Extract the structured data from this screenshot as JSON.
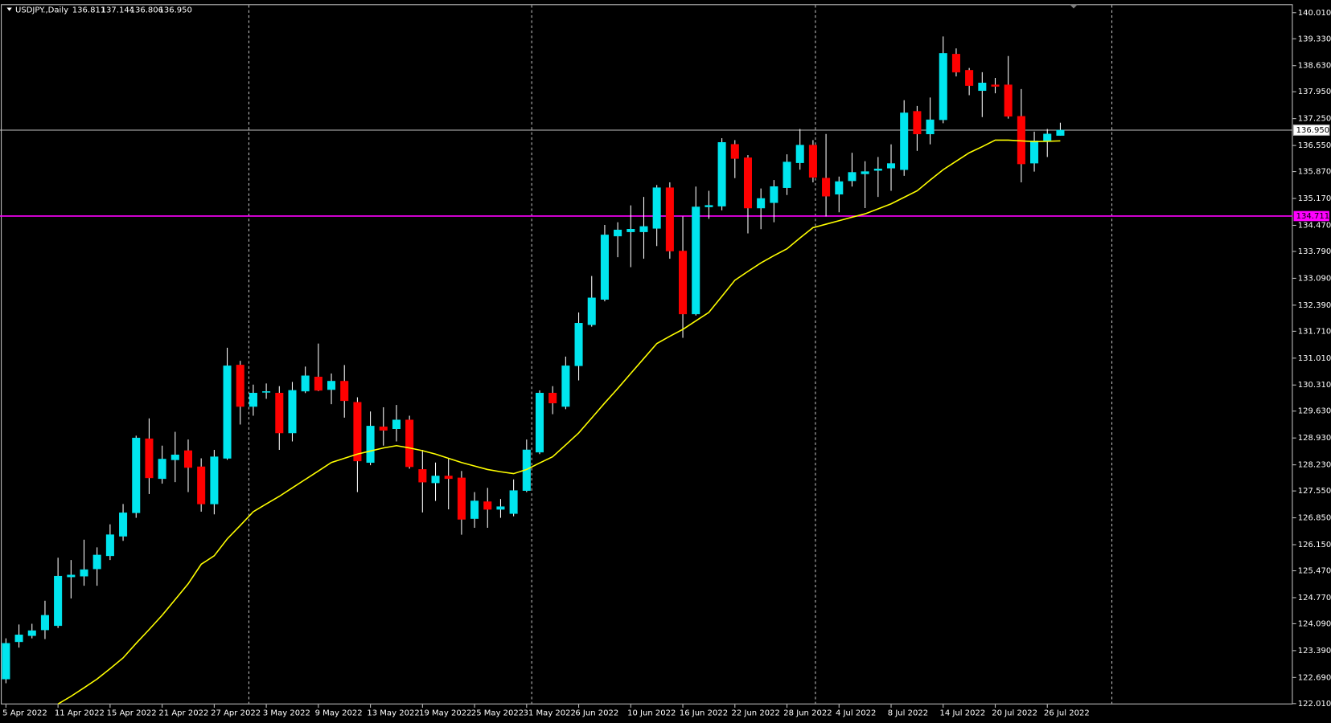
{
  "chart_data": {
    "type": "candlestick",
    "title": "USDJPY.,Daily",
    "categories": [
      "5 Apr 2022",
      null,
      null,
      null,
      "11 Apr 2022",
      null,
      null,
      null,
      "15 Apr 2022",
      null,
      null,
      null,
      "21 Apr 2022",
      null,
      null,
      null,
      "27 Apr 2022",
      null,
      null,
      null,
      "3 May 2022",
      null,
      null,
      null,
      "9 May 2022",
      null,
      null,
      null,
      "13 May 2022",
      null,
      null,
      null,
      "19 May 2022",
      null,
      null,
      null,
      "25 May 2022",
      null,
      null,
      null,
      "31 May 2022",
      null,
      null,
      null,
      "6 Jun 2022",
      null,
      null,
      null,
      "10 Jun 2022",
      null,
      null,
      null,
      "16 Jun 2022",
      null,
      null,
      null,
      "22 Jun 2022",
      null,
      null,
      null,
      "28 Jun 2022",
      null,
      null,
      null,
      "4 Jul 2022",
      null,
      null,
      null,
      "8 Jul 2022",
      null,
      null,
      null,
      "14 Jul 2022",
      null,
      null,
      null,
      "20 Jul 2022",
      null,
      null,
      null,
      "26 Jul 2022",
      null
    ],
    "open": [
      122.65,
      123.62,
      123.78,
      123.93,
      124.04,
      125.31,
      125.33,
      125.52,
      125.86,
      126.37,
      126.98,
      128.91,
      127.87,
      128.36,
      128.6,
      128.18,
      127.21,
      128.4,
      130.83,
      129.75,
      130.12,
      130.1,
      129.06,
      130.15,
      130.52,
      130.19,
      130.41,
      129.86,
      128.29,
      129.22,
      129.17,
      129.4,
      128.11,
      127.76,
      127.94,
      127.89,
      126.83,
      127.27,
      127.07,
      126.96,
      127.56,
      128.56,
      130.1,
      129.75,
      130.81,
      131.88,
      132.54,
      134.19,
      134.3,
      134.3,
      134.39,
      135.45,
      133.8,
      132.16,
      134.95,
      134.97,
      136.58,
      136.23,
      134.92,
      135.06,
      135.45,
      136.1,
      136.56,
      135.7,
      135.28,
      135.63,
      135.81,
      135.9,
      135.96,
      135.92,
      137.44,
      136.85,
      137.22,
      138.93,
      138.51,
      137.98,
      138.13,
      138.13,
      137.31,
      136.09,
      136.65,
      136.811
    ],
    "high": [
      123.71,
      124.07,
      124.09,
      124.69,
      125.81,
      125.75,
      126.28,
      126.08,
      126.68,
      127.21,
      128.99,
      129.44,
      128.73,
      129.09,
      128.89,
      128.4,
      128.62,
      131.28,
      130.94,
      130.32,
      130.35,
      130.28,
      130.39,
      130.79,
      131.39,
      130.61,
      130.83,
      129.99,
      129.62,
      129.73,
      129.79,
      129.51,
      128.62,
      128.29,
      128.4,
      128.07,
      127.52,
      127.63,
      127.34,
      127.85,
      128.89,
      130.17,
      130.28,
      131.05,
      132.2,
      133.15,
      134.48,
      134.55,
      134.99,
      135.21,
      135.52,
      135.59,
      134.7,
      135.48,
      135.37,
      136.74,
      136.69,
      136.3,
      135.43,
      135.65,
      136.32,
      136.98,
      136.69,
      136.85,
      135.74,
      136.36,
      136.14,
      136.25,
      136.58,
      137.73,
      137.58,
      137.8,
      139.39,
      139.08,
      138.57,
      138.46,
      138.31,
      138.88,
      138.02,
      136.91,
      136.98,
      137.144
    ],
    "low": [
      122.54,
      123.47,
      123.71,
      123.69,
      123.98,
      124.75,
      125.08,
      125.08,
      125.75,
      126.25,
      126.85,
      127.47,
      127.74,
      127.78,
      127.52,
      127.01,
      126.94,
      128.36,
      129.28,
      129.51,
      129.95,
      128.62,
      128.84,
      130.1,
      130.15,
      129.81,
      129.46,
      127.52,
      128.22,
      128.73,
      128.84,
      128.13,
      126.99,
      127.29,
      127.07,
      126.41,
      126.59,
      126.59,
      126.85,
      126.89,
      127.52,
      128.51,
      129.55,
      129.68,
      130.43,
      131.83,
      132.49,
      133.64,
      133.38,
      133.6,
      133.93,
      133.6,
      131.54,
      132.12,
      134.64,
      134.86,
      135.7,
      134.26,
      134.37,
      134.55,
      135.26,
      135.92,
      135.59,
      134.7,
      134.81,
      135.48,
      134.92,
      135.21,
      135.37,
      135.76,
      136.41,
      136.58,
      137.13,
      138.35,
      137.86,
      137.29,
      137.91,
      137.25,
      135.59,
      135.87,
      136.25,
      136.806
    ],
    "close": [
      123.58,
      123.8,
      123.91,
      124.31,
      125.33,
      125.36,
      125.5,
      125.88,
      126.41,
      126.98,
      128.93,
      127.89,
      128.38,
      128.49,
      128.16,
      127.21,
      128.44,
      130.81,
      129.75,
      130.1,
      130.14,
      129.06,
      130.17,
      130.55,
      130.17,
      130.41,
      129.9,
      128.33,
      129.24,
      129.13,
      129.4,
      128.18,
      127.78,
      127.94,
      127.87,
      126.81,
      127.29,
      127.07,
      127.14,
      127.56,
      128.62,
      130.1,
      129.84,
      130.81,
      131.92,
      132.58,
      134.22,
      134.35,
      134.37,
      134.44,
      135.45,
      133.8,
      132.16,
      134.95,
      134.99,
      136.63,
      136.21,
      134.92,
      135.17,
      135.48,
      136.12,
      136.56,
      135.72,
      135.23,
      135.61,
      135.85,
      135.87,
      135.94,
      136.08,
      137.4,
      136.85,
      137.22,
      138.95,
      138.46,
      138.11,
      138.18,
      138.09,
      137.31,
      136.07,
      136.67,
      136.85,
      136.95
    ],
    "up_color": "#00e5ee",
    "down_color": "#ff0000",
    "wick_color": "#ffffff",
    "moving_average": {
      "color": "#ffff00",
      "values": [
        null,
        null,
        null,
        null,
        122.0,
        122.2,
        122.42,
        122.65,
        122.92,
        123.2,
        123.58,
        123.94,
        124.31,
        124.72,
        125.13,
        125.64,
        125.86,
        126.3,
        126.65,
        127.01,
        127.21,
        127.41,
        127.63,
        127.85,
        128.07,
        128.29,
        128.4,
        128.51,
        128.59,
        128.67,
        128.73,
        128.67,
        128.6,
        128.51,
        128.4,
        128.29,
        128.2,
        128.11,
        128.05,
        128.0,
        128.11,
        128.28,
        128.44,
        128.75,
        129.06,
        129.45,
        129.84,
        130.22,
        130.61,
        131.0,
        131.39,
        131.58,
        131.76,
        131.98,
        132.2,
        132.62,
        133.04,
        133.27,
        133.49,
        133.68,
        133.86,
        134.14,
        134.41,
        134.5,
        134.59,
        134.68,
        134.77,
        134.9,
        135.03,
        135.2,
        135.37,
        135.65,
        135.92,
        136.14,
        136.36,
        136.52,
        136.69,
        136.69,
        136.67,
        136.65,
        136.66,
        136.67
      ]
    },
    "current_price": {
      "value": 136.95,
      "label": "136.950",
      "color": "#c0c0c0"
    },
    "level": {
      "value": 134.711,
      "color": "#ff00ff"
    },
    "ylim": [
      121.99,
      140.23
    ],
    "yticks": [
      {
        "value": 140.01,
        "label": "140.010"
      },
      {
        "value": 139.33,
        "label": "139.330"
      },
      {
        "value": 138.63,
        "label": "138.630"
      },
      {
        "value": 137.95,
        "label": "137.950"
      },
      {
        "value": 137.25,
        "label": "137.250"
      },
      {
        "value": 136.55,
        "label": "136.550"
      },
      {
        "value": 135.87,
        "label": "135.870"
      },
      {
        "value": 135.17,
        "label": "135.170"
      },
      {
        "value": 134.47,
        "label": "134.470"
      },
      {
        "value": 133.79,
        "label": "133.790"
      },
      {
        "value": 133.09,
        "label": "133.090"
      },
      {
        "value": 132.39,
        "label": "132.390"
      },
      {
        "value": 131.71,
        "label": "131.710"
      },
      {
        "value": 131.01,
        "label": "131.010"
      },
      {
        "value": 130.31,
        "label": "130.310"
      },
      {
        "value": 129.63,
        "label": "129.630"
      },
      {
        "value": 128.93,
        "label": "128.930"
      },
      {
        "value": 128.23,
        "label": "128.230"
      },
      {
        "value": 127.55,
        "label": "127.550"
      },
      {
        "value": 126.85,
        "label": "126.850"
      },
      {
        "value": 126.15,
        "label": "126.150"
      },
      {
        "value": 125.47,
        "label": "125.470"
      },
      {
        "value": 124.77,
        "label": "124.770"
      },
      {
        "value": 124.09,
        "label": "124.090"
      },
      {
        "value": 123.39,
        "label": "123.390"
      },
      {
        "value": 122.69,
        "label": "122.690"
      },
      {
        "value": 122.01,
        "label": "122.010"
      }
    ],
    "grid": false
  }
}
